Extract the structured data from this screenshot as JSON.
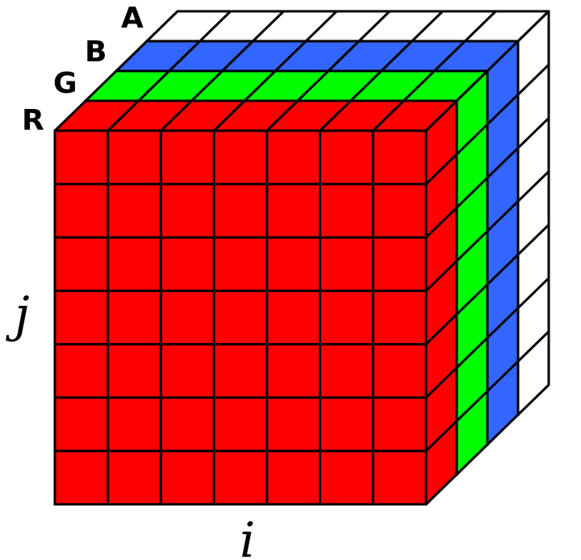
{
  "grid": {
    "columns": 7,
    "rows": 7
  },
  "layers": [
    {
      "label": "A",
      "color": "#ffffff"
    },
    {
      "label": "B",
      "color": "#3366ff"
    },
    {
      "label": "G",
      "color": "#00ff00"
    },
    {
      "label": "R",
      "color": "#ff0000"
    }
  ],
  "axes": {
    "horizontal": "i",
    "vertical": "j"
  },
  "line_color": "#000000"
}
